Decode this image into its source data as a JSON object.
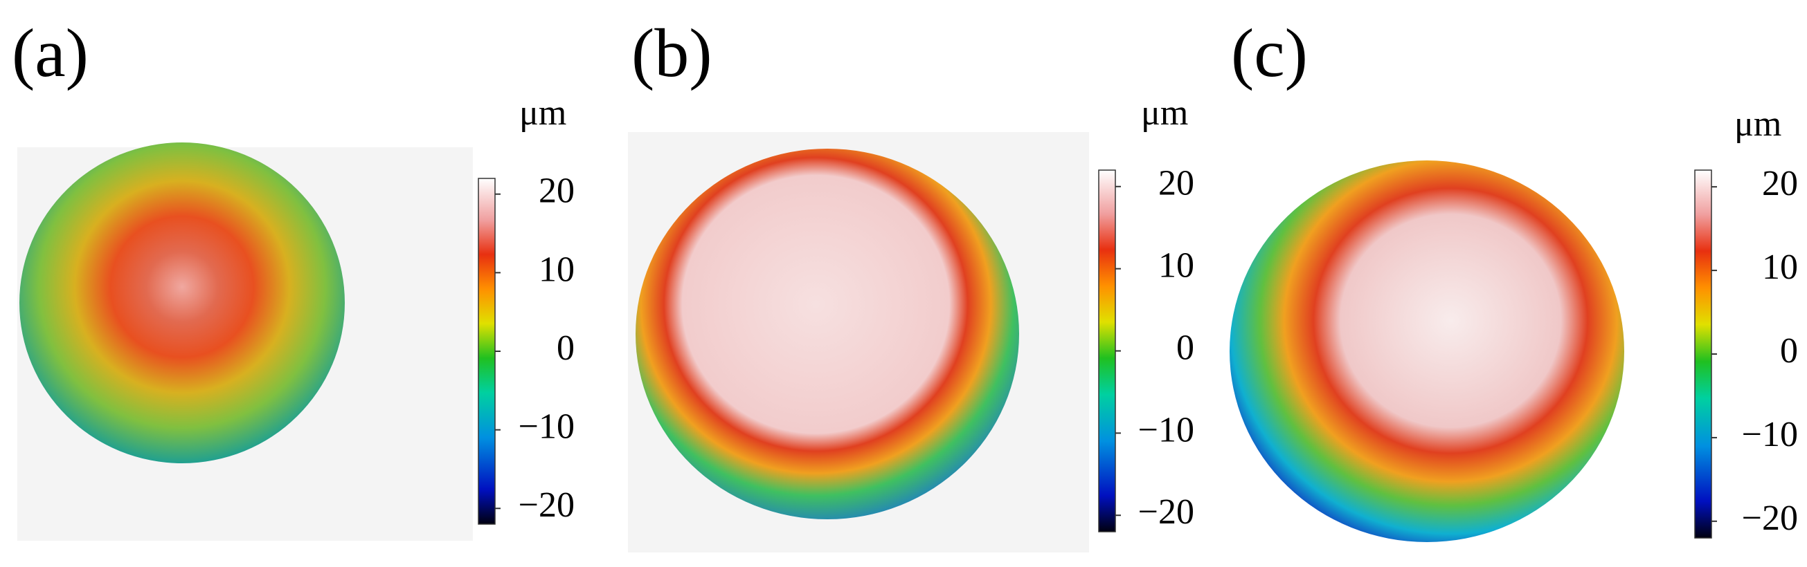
{
  "panels": [
    {
      "label": "(a)",
      "unit": "μm",
      "colorbar": {
        "range": [
          -22,
          22
        ],
        "ticks": [
          {
            "value": -20,
            "label": "−20"
          },
          {
            "value": -10,
            "label": "−10"
          },
          0,
          10,
          20
        ]
      }
    },
    {
      "label": "(b)",
      "unit": "μm",
      "colorbar": {
        "range": [
          -22,
          22
        ],
        "ticks": [
          {
            "value": -20,
            "label": "−20"
          },
          {
            "value": -10,
            "label": "−10"
          },
          0,
          10,
          20
        ]
      }
    },
    {
      "label": "(c)",
      "unit": "μm",
      "colorbar": {
        "range": [
          -22,
          22
        ],
        "ticks": [
          {
            "value": -20,
            "label": "−20"
          },
          {
            "value": -10,
            "label": "−10"
          },
          0,
          10,
          20
        ]
      }
    }
  ]
}
